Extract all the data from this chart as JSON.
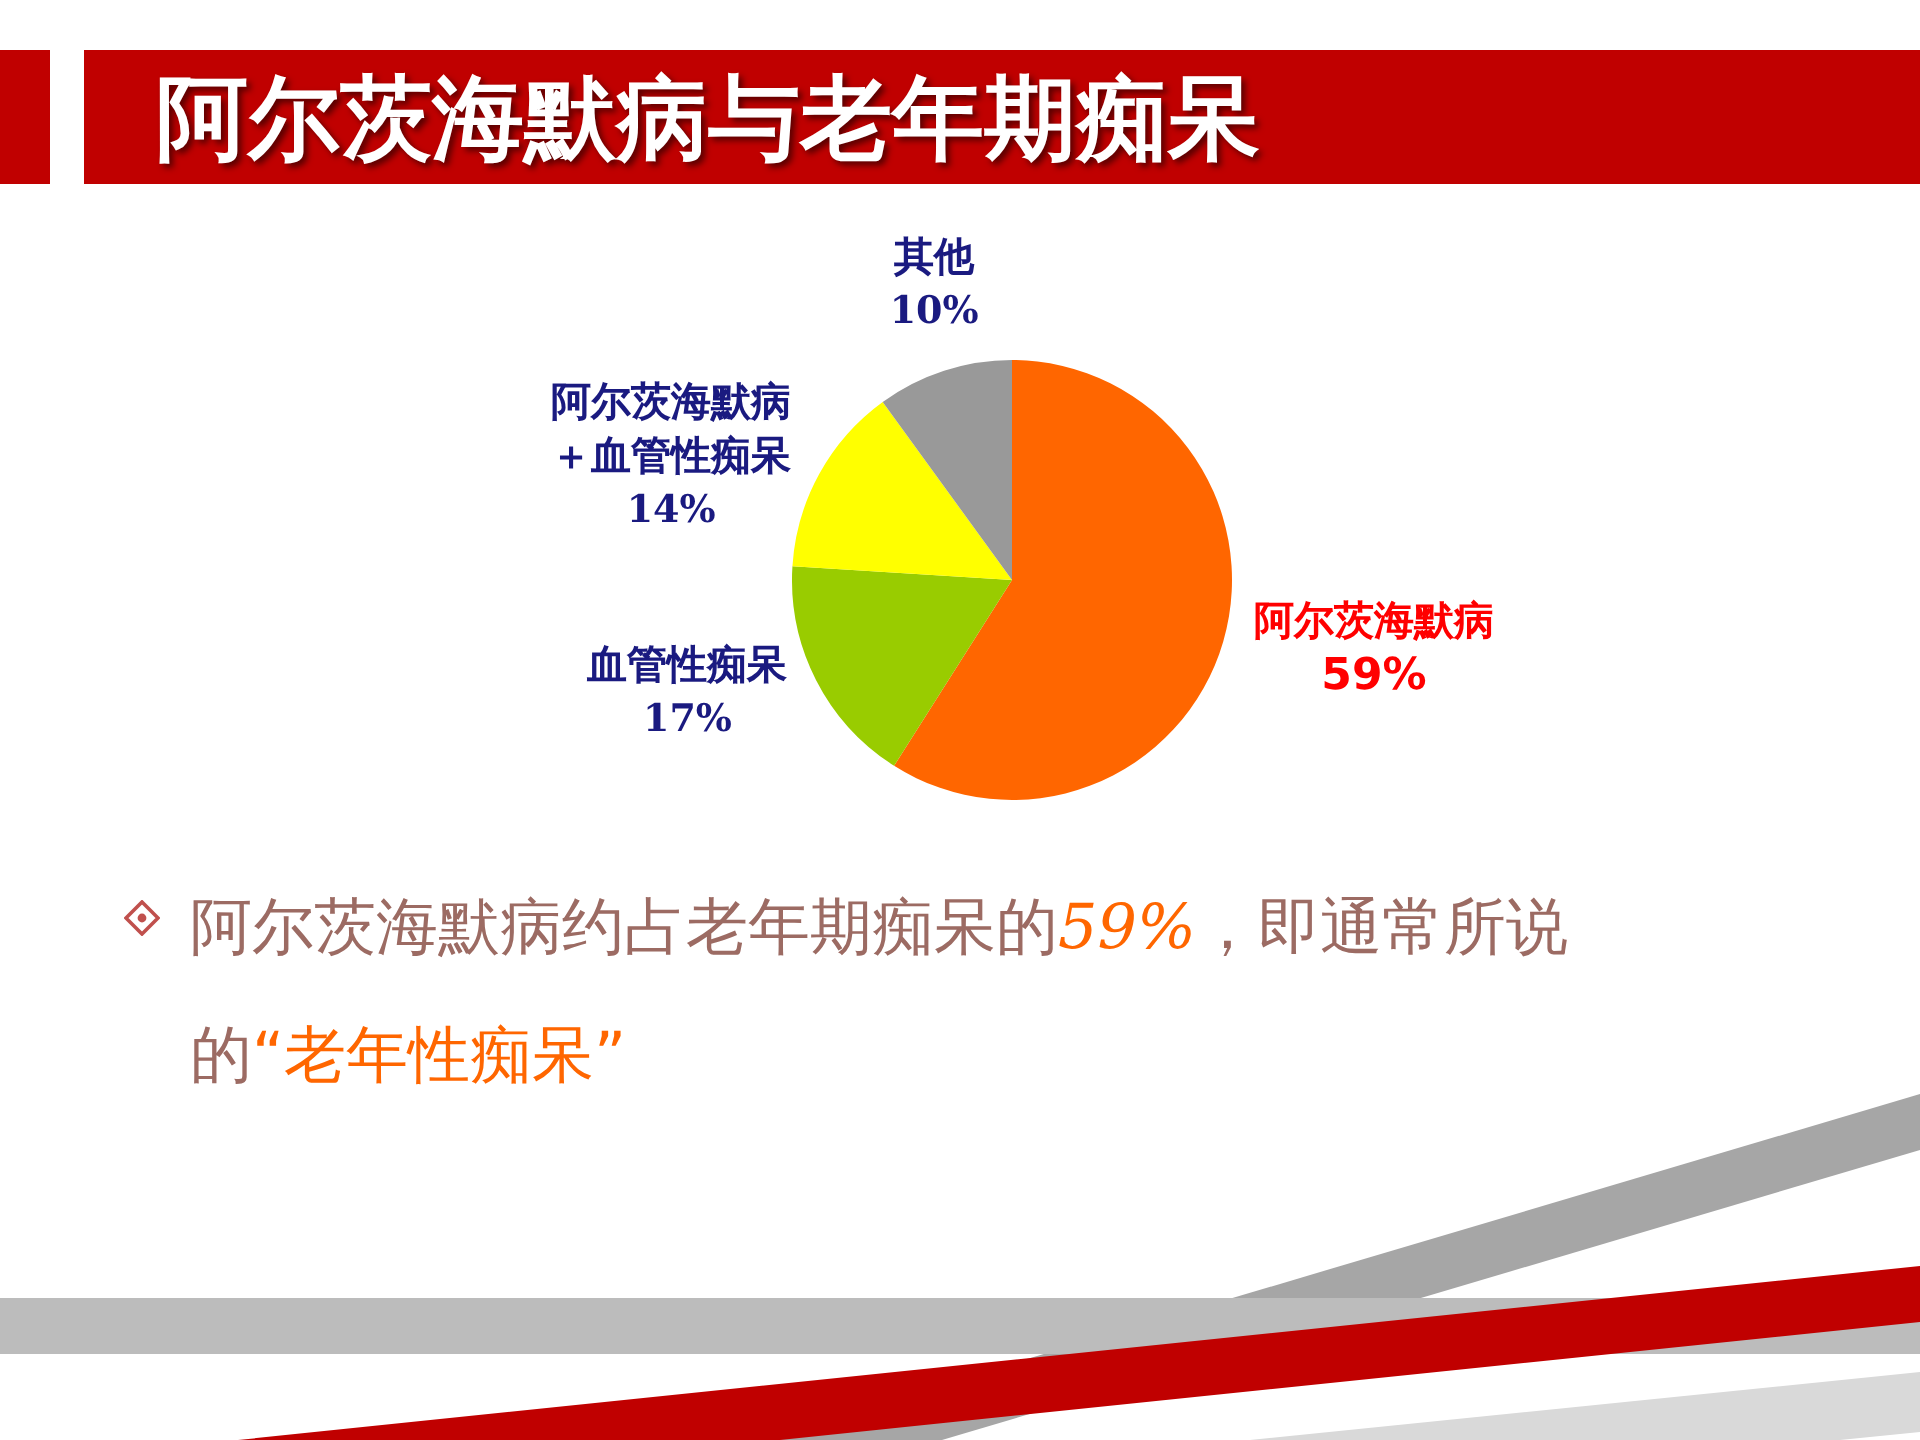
{
  "chart_data": {
    "type": "pie",
    "title": "阿尔茨海默病与老年期痴呆",
    "categories": [
      "阿尔茨海默病",
      "血管性痴呆",
      "阿尔茨海默病＋血管性痴呆",
      "其他"
    ],
    "values": [
      59,
      17,
      14,
      10
    ],
    "colors": [
      "#ff6600",
      "#99cc00",
      "#ffff00",
      "#999999"
    ],
    "value_labels": [
      "59%",
      "17%",
      "14%",
      "10%"
    ],
    "annotations": [
      "阿尔茨海默病约占老年期痴呆的59%，即通常所说的“老年性痴呆”"
    ]
  }
}
